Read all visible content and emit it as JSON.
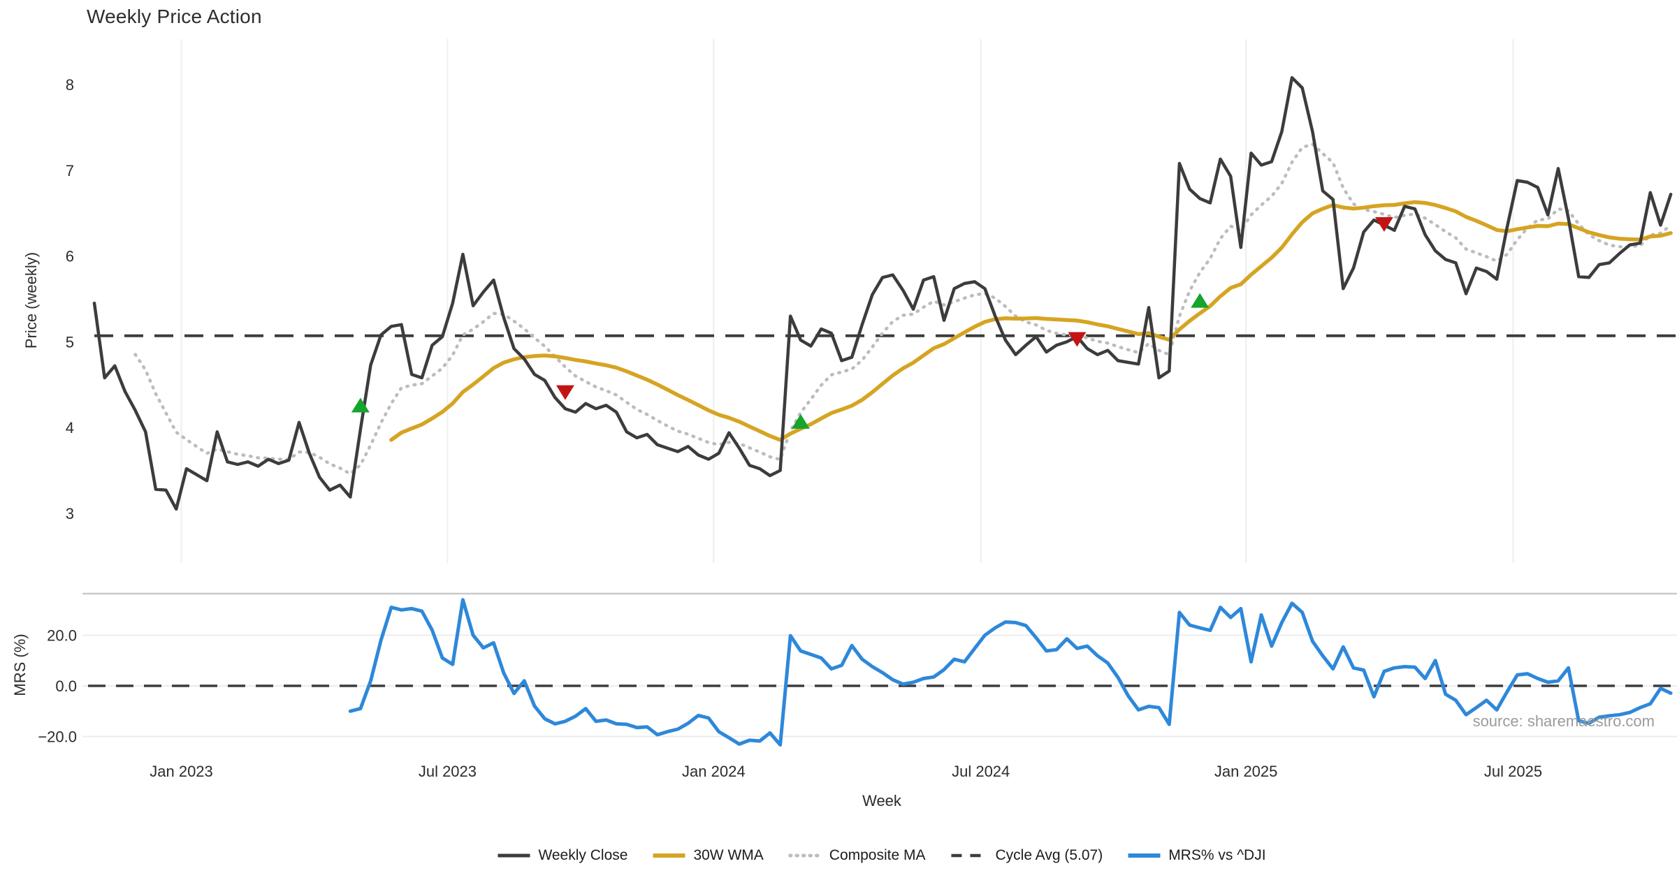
{
  "title": "Weekly Price Action",
  "source": "source: sharemaestro.com",
  "axes": {
    "xlabel": "Week",
    "price_ylabel": "Price (weekly)",
    "mrs_ylabel": "MRS (%)",
    "price_yticks": [
      8,
      7,
      6,
      5,
      4,
      3
    ],
    "mrs_ytick_labels": [
      "20.0",
      "0.0",
      "−20.0"
    ],
    "mrs_ytick_values": [
      20,
      0,
      -20
    ],
    "xtick_labels": [
      "Jan 2023",
      "Jul 2023",
      "Jan 2024",
      "Jul 2024",
      "Jan 2025",
      "Jul 2025"
    ],
    "xtick_weeks": [
      8.5,
      34.5,
      60.5,
      86.6,
      112.5,
      138.6
    ]
  },
  "legend": {
    "items": [
      {
        "label": "Weekly Close",
        "swatch": "solid",
        "color_key": "close"
      },
      {
        "label": "30W WMA",
        "swatch": "solid",
        "color_key": "wma"
      },
      {
        "label": "Composite MA",
        "swatch": "dotted",
        "color_key": "composite"
      },
      {
        "label": "Cycle Avg (5.07)",
        "swatch": "dashed",
        "color_key": "cycle"
      },
      {
        "label": "MRS% vs ^DJI",
        "swatch": "solid",
        "color_key": "mrs"
      }
    ]
  },
  "colors": {
    "close": "#3c3c3c",
    "wma": "#d5a422",
    "composite": "#bcbcbc",
    "cycle": "#3d3d3d",
    "mrs": "#2e88d9",
    "buy": "#15a42c",
    "sell": "#c31414",
    "grid": "#eeeeee",
    "spine": "#c9c9c9",
    "tick_text": "#2c2c2c",
    "source_text": "#9b9b9b"
  },
  "chart_data": [
    {
      "type": "line",
      "panel": "price",
      "title": "Weekly Price Action",
      "xlabel": "Week",
      "ylabel": "Price (weekly)",
      "ylim": [
        2.45,
        8.5
      ],
      "yticks": [
        3,
        4,
        5,
        6,
        7,
        8
      ],
      "grid": "vertical-only",
      "cycle_avg": 5.07,
      "series": [
        {
          "name": "Weekly Close",
          "start_week": 0,
          "values": [
            5.45,
            4.58,
            4.72,
            4.42,
            4.2,
            3.95,
            3.28,
            3.27,
            3.05,
            3.52,
            3.45,
            3.38,
            3.95,
            3.6,
            3.57,
            3.6,
            3.55,
            3.63,
            3.58,
            3.62,
            4.06,
            3.7,
            3.42,
            3.27,
            3.33,
            3.19,
            3.98,
            4.73,
            5.08,
            5.18,
            5.2,
            4.62,
            4.58,
            4.96,
            5.06,
            5.45,
            6.02,
            5.42,
            5.58,
            5.72,
            5.28,
            4.92,
            4.8,
            4.62,
            4.55,
            4.35,
            4.22,
            4.18,
            4.28,
            4.22,
            4.26,
            4.18,
            3.95,
            3.88,
            3.92,
            3.8,
            3.76,
            3.72,
            3.78,
            3.68,
            3.63,
            3.7,
            3.94,
            3.76,
            3.56,
            3.52,
            3.44,
            3.5,
            5.3,
            5.02,
            4.95,
            5.15,
            5.1,
            4.78,
            4.82,
            5.2,
            5.55,
            5.75,
            5.78,
            5.6,
            5.38,
            5.72,
            5.76,
            5.25,
            5.62,
            5.68,
            5.7,
            5.62,
            5.3,
            5.02,
            4.85,
            4.96,
            5.06,
            4.88,
            4.96,
            5.0,
            5.06,
            4.92,
            4.85,
            4.9,
            4.78,
            4.76,
            4.74,
            5.4,
            4.58,
            4.66,
            7.08,
            6.78,
            6.67,
            6.62,
            7.13,
            6.93,
            6.1,
            7.2,
            7.06,
            7.1,
            7.45,
            8.08,
            7.96,
            7.45,
            6.76,
            6.66,
            5.62,
            5.86,
            6.28,
            6.42,
            6.36,
            6.3,
            6.58,
            6.55,
            6.25,
            6.06,
            5.96,
            5.92,
            5.56,
            5.86,
            5.82,
            5.73,
            6.33,
            6.88,
            6.86,
            6.8,
            6.48,
            7.02,
            6.44,
            5.76,
            5.75,
            5.9,
            5.92,
            6.03,
            6.13,
            6.15,
            6.74,
            6.36,
            6.72
          ]
        },
        {
          "name": "30W WMA",
          "derived": "wma",
          "window": 30,
          "of": "Weekly Close"
        },
        {
          "name": "Composite MA",
          "derived": "ema",
          "span": 9,
          "draw_from_week": 4,
          "of": "Weekly Close"
        }
      ],
      "buy_signals": [
        {
          "week": 26,
          "price": 4.25
        },
        {
          "week": 69,
          "price": 4.06
        },
        {
          "week": 108,
          "price": 5.47
        }
      ],
      "sell_signals": [
        {
          "week": 46,
          "price": 4.42
        },
        {
          "week": 96,
          "price": 5.04
        },
        {
          "week": 126,
          "price": 6.38
        }
      ]
    },
    {
      "type": "line",
      "panel": "mrs",
      "ylabel": "MRS (%)",
      "ylim": [
        -26.5,
        36.5
      ],
      "yticks": [
        -20,
        0,
        20
      ],
      "grid": "horizontal-only",
      "zero_line": 0,
      "series": [
        {
          "name": "MRS% vs ^DJI",
          "start_week": 25,
          "values": [
            -10,
            -9,
            2,
            18,
            31,
            30,
            30.5,
            29.5,
            22,
            11,
            8.5,
            34,
            20,
            15,
            17,
            5,
            -3,
            2,
            -8,
            -13,
            -15,
            -14,
            -12,
            -9,
            -14,
            -13.5,
            -15,
            -15.2,
            -16.5,
            -16.2,
            -19.3,
            -18.1,
            -17.1,
            -14.8,
            -11.7,
            -12.7,
            -18.1,
            -20.5,
            -23,
            -21.5,
            -21.8,
            -18.6,
            -23.3,
            19.8,
            13.8,
            12.4,
            11,
            6.7,
            8.1,
            15.9,
            10.5,
            7.6,
            5.2,
            2.4,
            0.7,
            1.4,
            2.9,
            3.5,
            6.4,
            10.5,
            9.5,
            14.8,
            20,
            22.9,
            25.2,
            25,
            23.8,
            19,
            13.8,
            14.3,
            18.6,
            14.8,
            15.7,
            11.9,
            9,
            3.3,
            -4,
            -9.5,
            -8.1,
            -8.6,
            -15.2,
            29,
            24,
            22.9,
            21.9,
            31,
            27,
            30.5,
            9.5,
            28,
            15.7,
            25,
            32.6,
            29,
            17.6,
            11.9,
            6.7,
            15.4,
            7.1,
            6.2,
            -4.3,
            5.7,
            7.1,
            7.6,
            7.4,
            2.9,
            10,
            -3.3,
            -5.7,
            -11.4,
            -8.6,
            -5.7,
            -9.5,
            -2.4,
            4.3,
            4.8,
            2.9,
            1.4,
            2.0,
            7.1,
            -13.8,
            -14.8,
            -12.4,
            -11.8,
            -11.4,
            -10.5,
            -8.6,
            -7.1,
            -1.0,
            -2.9
          ]
        }
      ]
    }
  ]
}
